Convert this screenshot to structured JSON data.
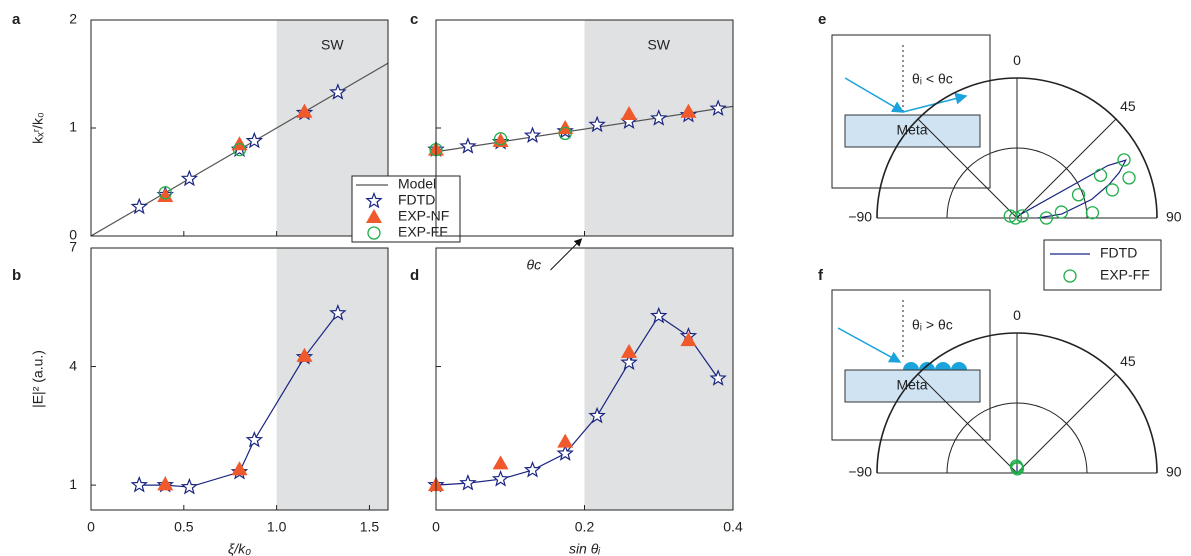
{
  "chart_data": [
    {
      "type": "scatter",
      "panel_label": "a",
      "xlim": [
        0,
        1.6
      ],
      "ylim": [
        0,
        2
      ],
      "xticks": [
        0,
        0.5,
        1,
        1.5
      ],
      "yticks": [
        0,
        1,
        2
      ],
      "xtick_labels": false,
      "y_label": "kₓʳ/k₀",
      "shade": {
        "label": "SW",
        "from": 1,
        "to": 1.6
      },
      "legend": "center",
      "series": [
        {
          "name": "Model",
          "color": "#555555",
          "marker": "none",
          "line": true,
          "x": [
            0,
            1.6
          ],
          "values": [
            0,
            1.6
          ]
        },
        {
          "name": "FDTD",
          "color": "#1a2580",
          "marker": "star",
          "line": false,
          "x": [
            0.26,
            0.4,
            0.53,
            0.8,
            0.88,
            1.15,
            1.33
          ],
          "values": [
            0.27,
            0.38,
            0.53,
            0.8,
            0.88,
            1.14,
            1.33
          ]
        },
        {
          "name": "EXP-NF",
          "color": "#f0592b",
          "marker": "triangle",
          "line": false,
          "x": [
            0.4,
            0.8,
            1.15
          ],
          "values": [
            0.37,
            0.85,
            1.15
          ]
        },
        {
          "name": "EXP-FF",
          "color": "#1fae4b",
          "marker": "circle",
          "line": false,
          "x": [
            0.4,
            0.8
          ],
          "values": [
            0.4,
            0.8
          ]
        }
      ]
    },
    {
      "type": "scatter",
      "panel_label": "b",
      "xlim": [
        0,
        1.6
      ],
      "ylim": [
        0.37,
        7
      ],
      "xticks": [
        0,
        0.5,
        {
          "value": 1,
          "label": "1.0"
        },
        1.5
      ],
      "yticks": [
        1,
        4,
        7
      ],
      "x_label": "ξ/k₀",
      "y_label": "|E|² (a.u.)",
      "shade": {
        "from": 1,
        "to": 1.6
      },
      "series": [
        {
          "color": "#1a2580",
          "marker": "star",
          "line": true,
          "x": [
            0.26,
            0.4,
            0.53,
            0.8,
            0.88,
            1.15,
            1.33
          ],
          "values": [
            1.0,
            1.0,
            0.95,
            1.33,
            2.14,
            4.24,
            5.35
          ]
        },
        {
          "color": "#f0592b",
          "marker": "triangle",
          "line": false,
          "x": [
            0.4,
            0.8,
            1.15
          ],
          "values": [
            1.02,
            1.4,
            4.27
          ]
        }
      ]
    },
    {
      "type": "scatter",
      "panel_label": "c",
      "xlim": [
        0,
        0.4
      ],
      "ylim": [
        0,
        2
      ],
      "xticks": [
        0,
        0.2,
        0.4
      ],
      "yticks": [
        0,
        1,
        2
      ],
      "xtick_labels": false,
      "ytick_labels": false,
      "shade": {
        "label": "SW",
        "from": 0.2,
        "to": 0.4
      },
      "annotation": {
        "text": "θc",
        "x": 0.2,
        "y": 0
      },
      "series": [
        {
          "color": "#555555",
          "marker": "none",
          "line": true,
          "x": [
            0,
            0.4
          ],
          "values": [
            0.78,
            1.2
          ]
        },
        {
          "color": "#1a2580",
          "marker": "star",
          "line": false,
          "x": [
            0,
            0.043,
            0.087,
            0.13,
            0.174,
            0.217,
            0.26,
            0.3,
            0.34,
            0.38
          ],
          "values": [
            0.8,
            0.83,
            0.87,
            0.93,
            0.97,
            1.03,
            1.06,
            1.09,
            1.12,
            1.18
          ]
        },
        {
          "color": "#f0592b",
          "marker": "triangle",
          "line": false,
          "x": [
            0,
            0.087,
            0.174,
            0.26,
            0.34
          ],
          "values": [
            0.8,
            0.88,
            1.0,
            1.13,
            1.15
          ]
        },
        {
          "color": "#1fae4b",
          "marker": "circle",
          "line": false,
          "x": [
            0,
            0.087,
            0.174
          ],
          "values": [
            0.8,
            0.9,
            0.95
          ]
        }
      ]
    },
    {
      "type": "scatter",
      "panel_label": "d",
      "xlim": [
        0,
        0.4
      ],
      "ylim": [
        0.37,
        7
      ],
      "xticks": [
        0,
        0.2,
        0.4
      ],
      "yticks": [
        1,
        4,
        7
      ],
      "ytick_labels": false,
      "x_label": "sin θᵢ",
      "shade": {
        "from": 0.2,
        "to": 0.4
      },
      "series": [
        {
          "color": "#1a2580",
          "marker": "star",
          "line": true,
          "x": [
            0,
            0.043,
            0.087,
            0.13,
            0.174,
            0.217,
            0.26,
            0.3,
            0.34,
            0.38
          ],
          "values": [
            1.0,
            1.05,
            1.15,
            1.38,
            1.8,
            2.75,
            4.1,
            5.28,
            4.77,
            3.7
          ]
        },
        {
          "color": "#f0592b",
          "marker": "triangle",
          "line": false,
          "x": [
            0,
            0.087,
            0.174,
            0.26,
            0.34
          ],
          "values": [
            1.0,
            1.55,
            2.1,
            4.37,
            4.67
          ]
        }
      ]
    },
    {
      "type": "polar",
      "panel_label": "e",
      "theta_lim": [
        -90,
        90
      ],
      "rlim": [
        0,
        1
      ],
      "theta_ticks": [
        {
          "value": -90,
          "label": "−90"
        },
        0,
        45,
        90
      ],
      "grid_angles": [
        -45,
        0,
        45
      ],
      "rticks": [
        0.5,
        1
      ],
      "legend": "below",
      "inset": {
        "text": "θᵢ < θc",
        "material": "Meta"
      },
      "series": [
        {
          "name": "FDTD",
          "color": "#1a2580",
          "marker": "none",
          "line": true,
          "theta": [
            30,
            60,
            62,
            66,
            70,
            76,
            85,
            90
          ],
          "values": [
            0.02,
            0.75,
            0.88,
            0.8,
            0.7,
            0.55,
            0.32,
            0.15
          ]
        },
        {
          "name": "EXP-FF",
          "color": "#1fae4b",
          "marker": "circle",
          "line": false,
          "theta": [
            61.5,
            62.9,
            70.3,
            73.6,
            69.3,
            86,
            82.4,
            90,
            68,
            -74,
            -90
          ],
          "values": [
            0.87,
            0.67,
            0.85,
            0.71,
            0.47,
            0.54,
            0.32,
            0.21,
            0.04,
            0.05,
            0.01
          ]
        }
      ]
    },
    {
      "type": "polar",
      "panel_label": "f",
      "theta_lim": [
        -90,
        90
      ],
      "rlim": [
        0,
        1
      ],
      "theta_ticks": [
        {
          "value": -90,
          "label": "−90"
        },
        0,
        45,
        90
      ],
      "grid_angles": [
        -45,
        0,
        45
      ],
      "rticks": [
        0.5,
        1
      ],
      "inset": {
        "text": "θᵢ > θc",
        "material": "Meta"
      },
      "series": [
        {
          "color": "#1a2580",
          "marker": "none",
          "line": true,
          "theta": [
            0,
            0
          ],
          "values": [
            0,
            0.05
          ]
        },
        {
          "color": "#1fae4b",
          "marker": "circle",
          "line": false,
          "theta": [
            0,
            -5,
            5
          ],
          "values": [
            0.04,
            0.05,
            0.03
          ]
        }
      ]
    }
  ]
}
